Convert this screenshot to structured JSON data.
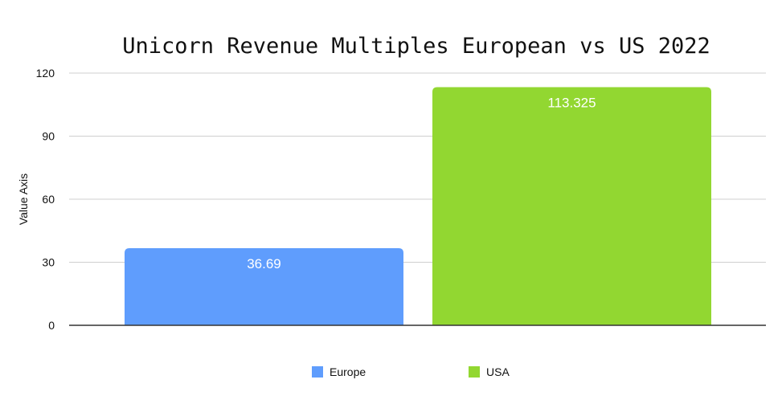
{
  "chart_data": {
    "type": "bar",
    "title": "Unicorn Revenue Multiples European vs US 2022",
    "ylabel": "Value Axis",
    "xlabel": "",
    "ylim": [
      0,
      120
    ],
    "yticks": [
      "0",
      "30",
      "60",
      "90",
      "120"
    ],
    "grid": true,
    "legend_placement": "bottom",
    "series": [
      {
        "name": "Europe",
        "value": 36.69,
        "label": "36.69",
        "color": "#5f9dfd"
      },
      {
        "name": "USA",
        "value": 113.325,
        "label": "113.325",
        "color": "#92d731"
      }
    ]
  }
}
